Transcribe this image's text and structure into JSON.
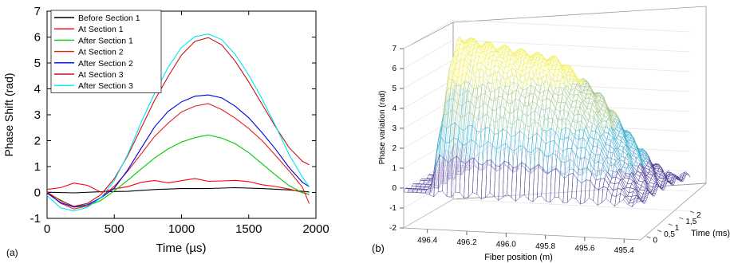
{
  "chart_data": [
    {
      "panel_label": "(a)",
      "type": "line",
      "xlabel": "Time (µs)",
      "ylabel": "Phase Shift (rad)",
      "xlim": [
        0,
        2000
      ],
      "ylim": [
        -1,
        7
      ],
      "xticks": [
        "0",
        "500",
        "1000",
        "1500",
        "2000"
      ],
      "yticks": [
        "-1",
        "0",
        "1",
        "2",
        "3",
        "4",
        "5",
        "6",
        "7"
      ],
      "legend_position": "top-left",
      "series": [
        {
          "name": "Before Section 1",
          "color": "#000000",
          "x": [
            0,
            200,
            400,
            600,
            800,
            1000,
            1200,
            1400,
            1600,
            1800,
            1950
          ],
          "y": [
            0.0,
            -0.05,
            0.0,
            0.05,
            0.15,
            0.18,
            0.15,
            0.15,
            0.12,
            0.1,
            0.05
          ]
        },
        {
          "name": "At Section 1",
          "color": "#ff0000",
          "x": [
            0,
            100,
            200,
            300,
            400,
            500,
            600,
            700,
            800,
            900,
            1000,
            1100,
            1200,
            1300,
            1400,
            1500,
            1600,
            1700,
            1800,
            1900,
            1950
          ],
          "y": [
            0.1,
            0.2,
            0.4,
            0.3,
            0.0,
            0.1,
            0.2,
            0.4,
            0.5,
            0.4,
            0.45,
            0.5,
            0.4,
            0.45,
            0.5,
            0.45,
            0.3,
            0.2,
            0.1,
            0.0,
            -0.05
          ]
        },
        {
          "name": "After Section 1",
          "color": "#00cc00",
          "x": [
            0,
            100,
            200,
            300,
            400,
            500,
            600,
            700,
            800,
            900,
            1000,
            1100,
            1200,
            1300,
            1400,
            1500,
            1600,
            1700,
            1800,
            1900,
            1950
          ],
          "y": [
            0.0,
            -0.3,
            -0.6,
            -0.55,
            -0.3,
            0.1,
            0.5,
            0.9,
            1.3,
            1.65,
            1.95,
            2.15,
            2.25,
            2.1,
            1.85,
            1.5,
            1.1,
            0.7,
            0.3,
            0.0,
            -0.1
          ]
        },
        {
          "name": "At Section 2",
          "color": "#e02020",
          "x": [
            0,
            100,
            200,
            300,
            400,
            500,
            600,
            700,
            800,
            900,
            1000,
            1100,
            1200,
            1300,
            1400,
            1500,
            1600,
            1700,
            1800,
            1900,
            1950
          ],
          "y": [
            0.0,
            -0.4,
            -0.6,
            -0.5,
            -0.2,
            0.2,
            0.8,
            1.5,
            2.2,
            2.7,
            3.1,
            3.3,
            3.4,
            3.2,
            2.9,
            2.5,
            2.0,
            1.4,
            0.8,
            0.2,
            -0.4
          ]
        },
        {
          "name": "After Section 2",
          "color": "#0000dd",
          "x": [
            0,
            100,
            200,
            300,
            400,
            500,
            600,
            700,
            800,
            900,
            1000,
            1100,
            1200,
            1300,
            1400,
            1500,
            1600,
            1700,
            1800,
            1900,
            1950
          ],
          "y": [
            0.0,
            -0.4,
            -0.6,
            -0.5,
            -0.2,
            0.2,
            0.9,
            1.7,
            2.5,
            3.1,
            3.5,
            3.75,
            3.8,
            3.65,
            3.3,
            2.85,
            2.3,
            1.7,
            1.0,
            0.4,
            0.2
          ]
        },
        {
          "name": "At Section 3",
          "color": "#cc1111",
          "x": [
            0,
            100,
            200,
            300,
            400,
            500,
            600,
            700,
            800,
            900,
            1000,
            1100,
            1200,
            1300,
            1400,
            1500,
            1600,
            1700,
            1800,
            1900,
            1950
          ],
          "y": [
            0.0,
            -0.3,
            -0.5,
            -0.4,
            -0.1,
            0.5,
            1.4,
            2.5,
            3.6,
            4.5,
            5.3,
            5.8,
            5.95,
            5.7,
            5.1,
            4.3,
            3.4,
            2.5,
            1.7,
            1.2,
            1.1
          ]
        },
        {
          "name": "After Section 3",
          "color": "#00e5ee",
          "x": [
            0,
            100,
            200,
            300,
            400,
            500,
            600,
            700,
            800,
            900,
            1000,
            1100,
            1200,
            1300,
            1400,
            1500,
            1600,
            1700,
            1800,
            1900,
            1950
          ],
          "y": [
            -0.1,
            -0.6,
            -0.75,
            -0.6,
            -0.2,
            0.5,
            1.5,
            2.7,
            3.8,
            4.8,
            5.6,
            6.05,
            6.15,
            5.9,
            5.3,
            4.5,
            3.6,
            2.6,
            1.5,
            0.6,
            0.2
          ]
        }
      ]
    },
    {
      "panel_label": "(b)",
      "type": "surface",
      "xlabel": "Fiber position (m)",
      "ylabel": "Time (ms)",
      "zlabel": "Phase variation (rad)",
      "xticks": [
        "496.4",
        "496.2",
        "496.0",
        "495.8",
        "495.6",
        "495.4"
      ],
      "yticks": [
        "0",
        "0,5",
        "1",
        "1,5",
        "2"
      ],
      "zticks": [
        "-2",
        "-1",
        "0",
        "1",
        "2",
        "3",
        "4",
        "5",
        "6",
        "7"
      ],
      "bands": [
        {
          "from": -1,
          "to": 1,
          "color": "#3d2a8c"
        },
        {
          "from": 1,
          "to": 3,
          "color": "#26a7c9"
        },
        {
          "from": 3,
          "to": 5,
          "color": "#9cc17f"
        },
        {
          "from": 5,
          "to": 7,
          "color": "#f1ee3c"
        }
      ]
    }
  ]
}
